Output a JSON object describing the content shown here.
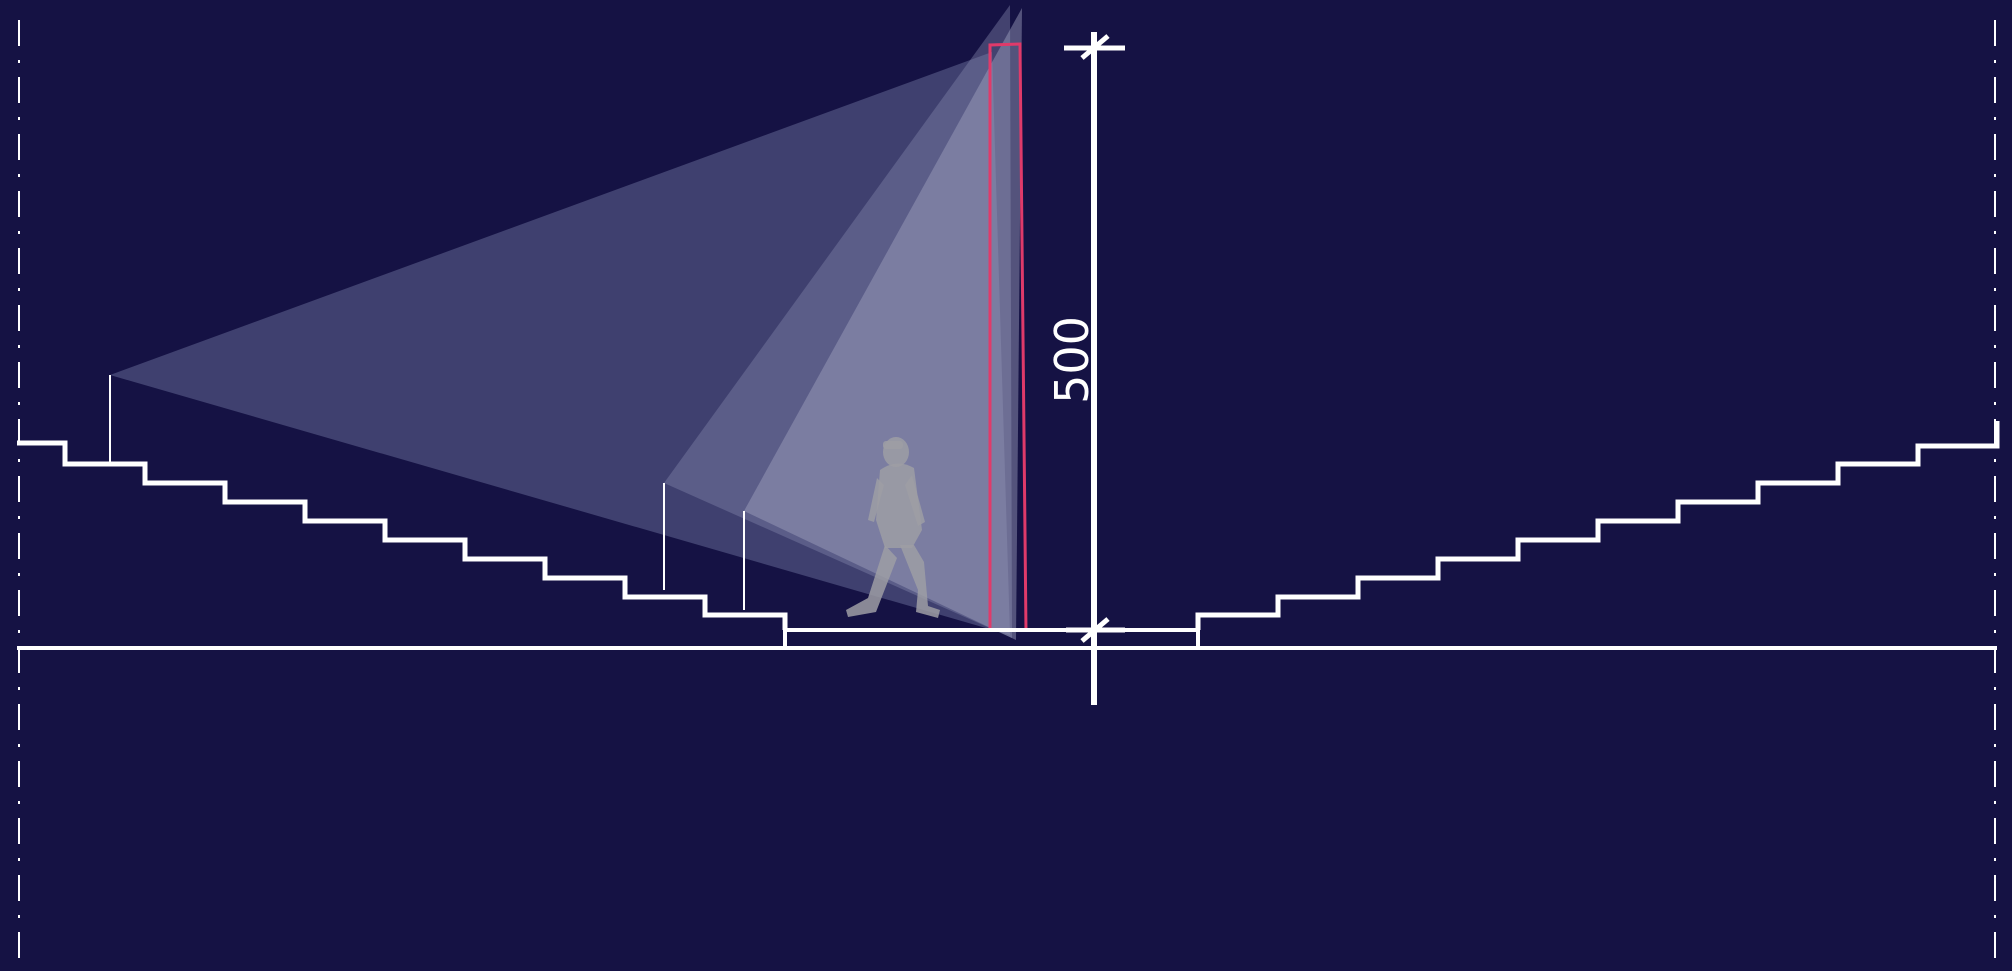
{
  "dimension": {
    "value": "500"
  },
  "colors": {
    "background": "#151244",
    "lines": "#ffffff",
    "display_outline": "#e03a6a",
    "figure": "#9e9ea4"
  }
}
